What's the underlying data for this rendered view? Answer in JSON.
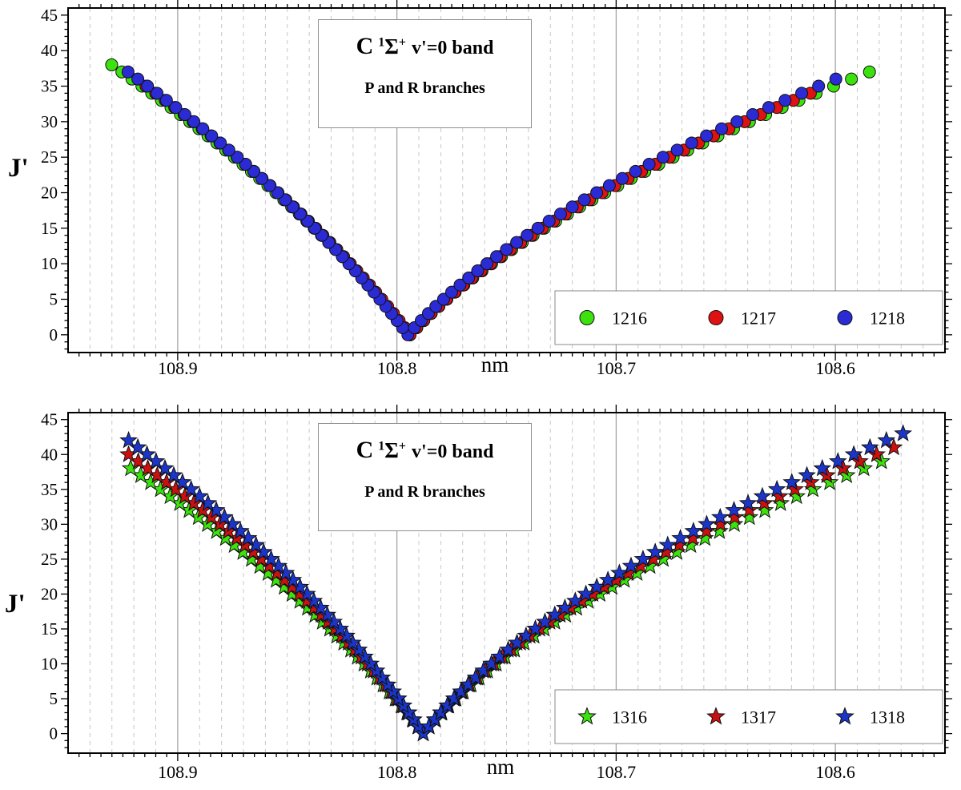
{
  "chart_data": [
    {
      "id": "upper-panel",
      "type": "scatter",
      "marker": "circle",
      "title": {
        "prefix": "C",
        "sup1": "1",
        "sigma": "Σ",
        "sup2": "+",
        "suffix": "v'=0 band"
      },
      "subtitle": "P and R branches",
      "xlabel": "nm",
      "ylabel": "J'",
      "x_axis": {
        "range_nm": [
          108.95,
          108.55
        ],
        "reversed": true,
        "major_ticks": [
          108.9,
          108.8,
          108.7,
          108.6
        ],
        "major_tick_labels": [
          "108.9",
          "108.8",
          "108.7",
          "108.6"
        ],
        "minor_grid_step_nm": 0.01,
        "tick_step_nm": 0.005
      },
      "y_axis": {
        "range": [
          -2.5,
          46
        ],
        "major_ticks": [
          0,
          5,
          10,
          15,
          20,
          25,
          30,
          35,
          40,
          45
        ],
        "major_tick_labels": [
          "0",
          "5",
          "10",
          "15",
          "20",
          "25",
          "30",
          "35",
          "40",
          "45"
        ],
        "minor_tick_step": 1
      },
      "grid": {
        "major_vertical_solid": true,
        "minor_vertical_dashed": true,
        "horizontal": false
      },
      "point_model": "lambda_nm = band_origin_nm + a*J + b*J^2 for P branch; lambda_nm = band_origin_nm - a*J - b*J^2 for R branch; J = J' integer steps",
      "series": [
        {
          "name": "1216",
          "color": "#3CE20D",
          "band_origin_nm": 108.794,
          "P_branch": {
            "J_min": 0,
            "J_max": 38,
            "a": 0.00248,
            "b": 2.9e-05
          },
          "R_branch": {
            "J_min": 1,
            "J_max": 37,
            "a": 0.003,
            "b": 7.2e-05
          }
        },
        {
          "name": "1217",
          "color": "#E01111",
          "band_origin_nm": 108.794,
          "P_branch": {
            "J_min": 0,
            "J_max": 35,
            "a": 0.00244,
            "b": 2.86e-05
          },
          "R_branch": {
            "J_min": 1,
            "J_max": 34,
            "a": 0.00296,
            "b": 7.09e-05
          }
        },
        {
          "name": "1218",
          "color": "#2B2BD6",
          "band_origin_nm": 108.795,
          "P_branch": {
            "J_min": 0,
            "J_max": 37,
            "a": 0.00241,
            "b": 2.81e-05
          },
          "R_branch": {
            "J_min": 1,
            "J_max": 36,
            "a": 0.00291,
            "b": 6.98e-05
          }
        }
      ],
      "legend": {
        "position": "lower-right",
        "items": [
          "1216",
          "1217",
          "1218"
        ]
      }
    },
    {
      "id": "lower-panel",
      "type": "scatter",
      "marker": "star",
      "title": {
        "prefix": "C",
        "sup1": "1",
        "sigma": "Σ",
        "sup2": "+",
        "suffix": "v'=0 band"
      },
      "subtitle": "P and R branches",
      "xlabel": "nm",
      "ylabel": "J'",
      "x_axis": {
        "range_nm": [
          108.95,
          108.55
        ],
        "reversed": true,
        "major_ticks": [
          108.9,
          108.8,
          108.7,
          108.6
        ],
        "major_tick_labels": [
          "108.9",
          "108.8",
          "108.7",
          "108.6"
        ],
        "minor_grid_step_nm": 0.01,
        "tick_step_nm": 0.005
      },
      "y_axis": {
        "range": [
          -2.8,
          46
        ],
        "major_ticks": [
          0,
          5,
          10,
          15,
          20,
          25,
          30,
          35,
          40,
          45
        ],
        "major_tick_labels": [
          "0",
          "5",
          "10",
          "15",
          "20",
          "25",
          "30",
          "35",
          "40",
          "45"
        ],
        "minor_tick_step": 1
      },
      "grid": {
        "major_vertical_solid": true,
        "minor_vertical_dashed": true,
        "horizontal": false
      },
      "point_model": "lambda_nm = band_origin_nm + a*J + b*J^2 for P branch; lambda_nm = band_origin_nm - a*J - b*J^2 for R branch; J = J' integer steps",
      "series": [
        {
          "name": "1316",
          "color": "#3CE20D",
          "band_origin_nm": 108.788,
          "P_branch": {
            "J_min": 0,
            "J_max": 38,
            "a": 0.00241,
            "b": 2.9e-05
          },
          "R_branch": {
            "J_min": 1,
            "J_max": 39,
            "a": 0.00263,
            "b": 7e-05
          }
        },
        {
          "name": "1317",
          "color": "#CC1010",
          "band_origin_nm": 108.788,
          "P_branch": {
            "J_min": 0,
            "J_max": 40,
            "a": 0.00228,
            "b": 2.7e-05
          },
          "R_branch": {
            "J_min": 1,
            "J_max": 41,
            "a": 0.00257,
            "b": 6.5e-05
          }
        },
        {
          "name": "1318",
          "color": "#1A35C8",
          "band_origin_nm": 108.788,
          "P_branch": {
            "J_min": 0,
            "J_max": 42,
            "a": 0.00215,
            "b": 2.5e-05
          },
          "R_branch": {
            "J_min": 1,
            "J_max": 43,
            "a": 0.00251,
            "b": 6e-05
          }
        }
      ],
      "legend": {
        "position": "lower-right",
        "items": [
          "1316",
          "1317",
          "1318"
        ]
      }
    }
  ]
}
